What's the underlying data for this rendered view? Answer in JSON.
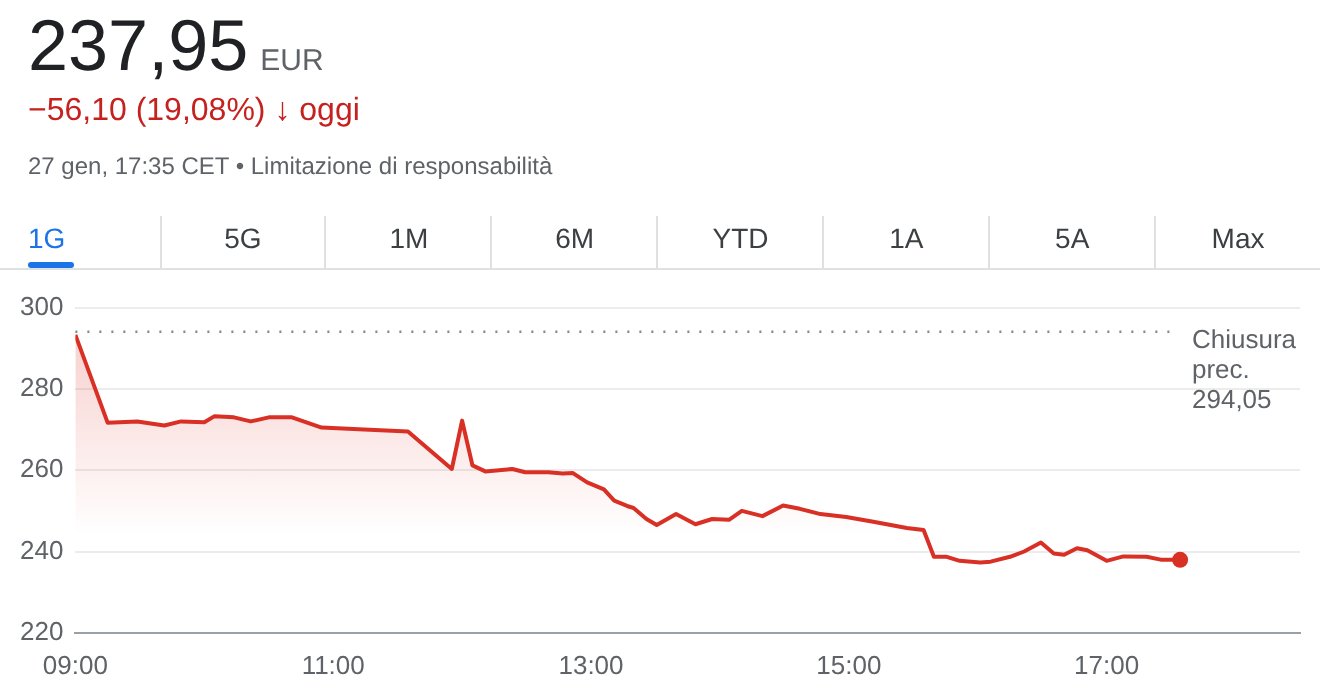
{
  "chart_data": {
    "type": "area",
    "title": "237,95",
    "annotations": [
      "EUR",
      "−56,10 (19,08%) ↓ oggi",
      "27 gen, 17:35 CET • Limitazione di responsabilità",
      "1G",
      "5G",
      "1M",
      "6M",
      "YTD",
      "1A",
      "5A",
      "Max"
    ],
    "x": [
      9.0,
      9.25,
      9.48,
      9.69,
      9.82,
      10.0,
      10.08,
      10.23,
      10.36,
      10.5,
      10.68,
      10.91,
      11.24,
      11.58,
      11.92,
      12.0,
      12.08,
      12.18,
      12.39,
      12.49,
      12.67,
      12.78,
      12.86,
      12.97,
      13.1,
      13.18,
      13.28,
      13.33,
      13.43,
      13.51,
      13.66,
      13.81,
      13.94,
      14.07,
      14.17,
      14.33,
      14.49,
      14.62,
      14.78,
      14.98,
      15.19,
      15.45,
      15.58,
      15.66,
      15.76,
      15.86,
      16.02,
      16.1,
      16.25,
      16.36,
      16.49,
      16.59,
      16.67,
      16.77,
      16.85,
      17.0,
      17.13,
      17.31,
      17.42,
      17.57
    ],
    "series": [
      {
        "color": "#d93025",
        "values": [
          293.3,
          271.7,
          272,
          271,
          272,
          271.8,
          273.3,
          273,
          272,
          273,
          273,
          270.5,
          270,
          269.5,
          260.3,
          272.2,
          261.2,
          259.7,
          260.3,
          259.5,
          259.5,
          259.2,
          259.3,
          257,
          255.3,
          252.5,
          251.2,
          250.7,
          248,
          246.5,
          249.2,
          246.7,
          248,
          247.8,
          250,
          248.7,
          251.3,
          250.5,
          249.2,
          248.5,
          247.3,
          245.8,
          245.3,
          238.7,
          238.7,
          237.7,
          237.3,
          237.5,
          238.7,
          240,
          242.2,
          239.5,
          239.2,
          240.8,
          240.3,
          237.7,
          238.8,
          238.7,
          238,
          237.95
        ]
      }
    ],
    "xlim": [
      9,
      18.5
    ],
    "xticks": [
      {
        "value": 9,
        "label": "09:00"
      },
      {
        "value": 11,
        "label": "11:00"
      },
      {
        "value": 13,
        "label": "13:00"
      },
      {
        "value": 15,
        "label": "15:00"
      },
      {
        "value": 17,
        "label": "17:00"
      }
    ],
    "ylim": [
      220,
      300
    ],
    "yticks": [
      220,
      240,
      260,
      280,
      300
    ],
    "grid": "y",
    "legend": false,
    "ref_lines": [
      {
        "axis": "y",
        "value": 294.05,
        "label": "Chiusura prec. 294,05",
        "color": "#80868b",
        "line_style": "dotted"
      }
    ]
  }
}
